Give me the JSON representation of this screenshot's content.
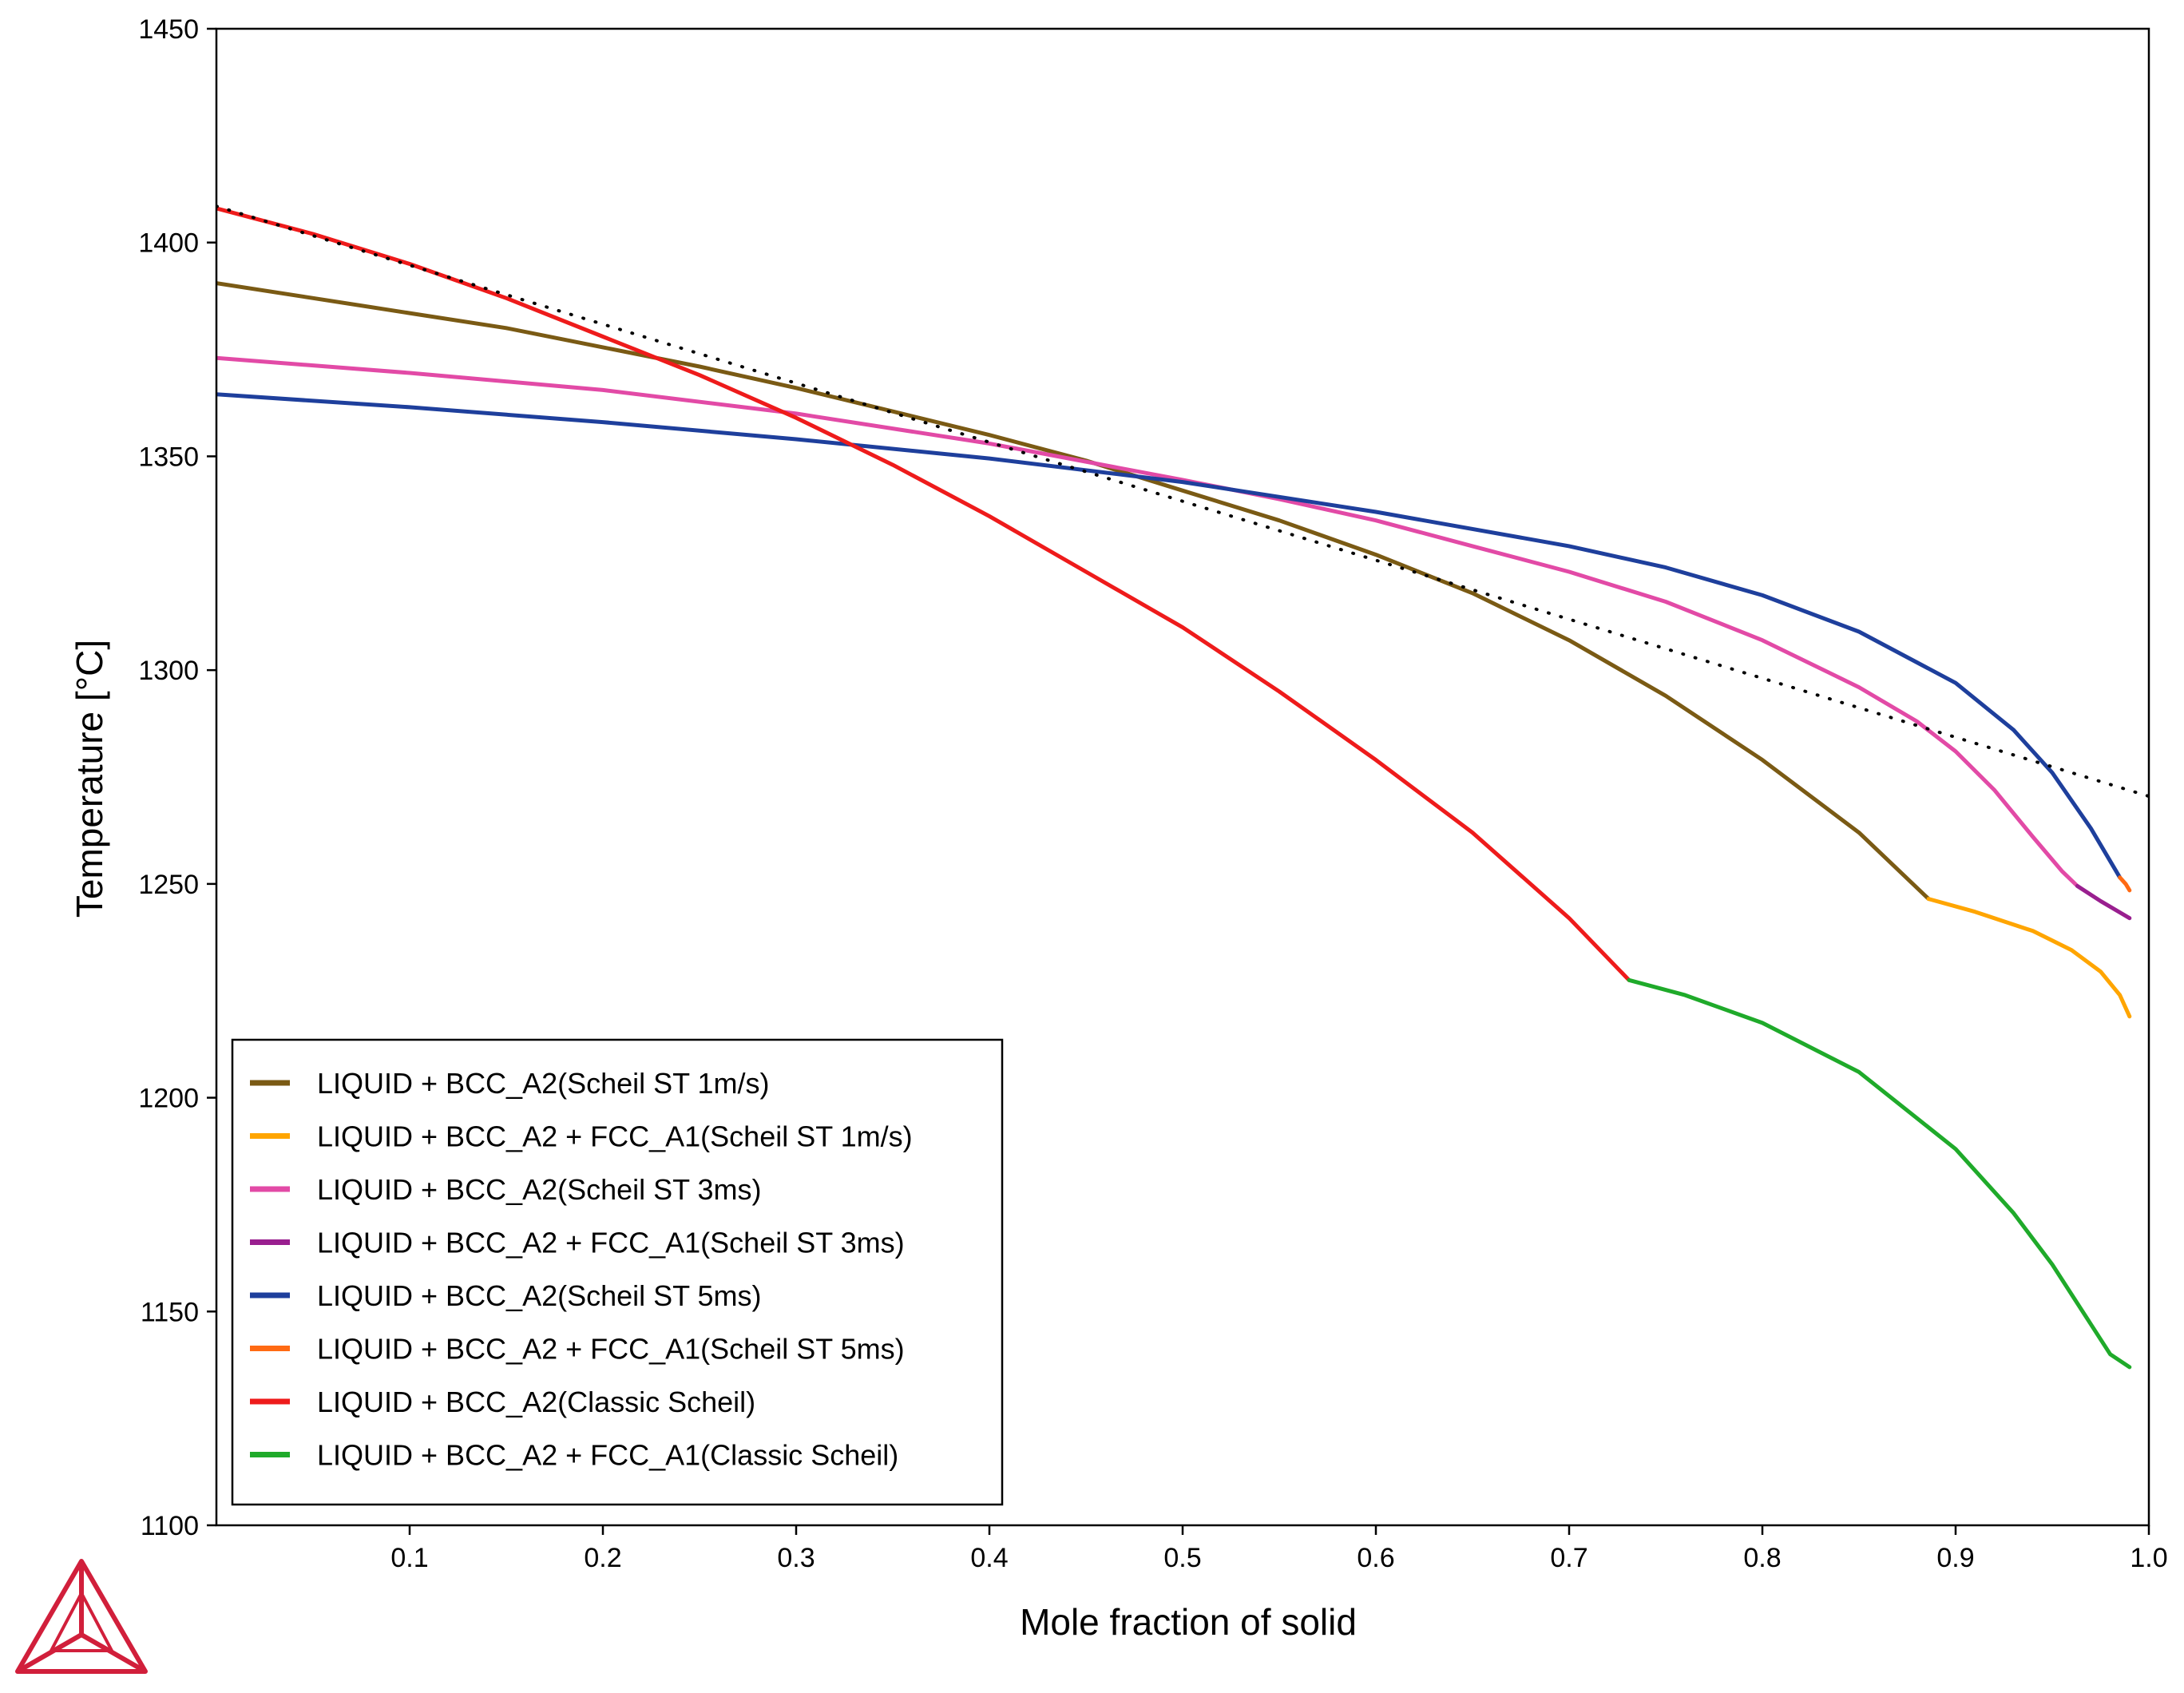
{
  "colors": {
    "scheil_1ms": "#7a5a14",
    "scheil_1ms_fcc": "#ffa500",
    "scheil_3ms": "#e24aa6",
    "scheil_3ms_fcc": "#991f8f",
    "scheil_5ms": "#1e3f9c",
    "scheil_5ms_fcc": "#ff6a13",
    "classic": "#ee1b1b",
    "classic_fcc": "#1faa2a",
    "reference_dotted": "#000000",
    "logo": "#d11f3b"
  },
  "chart_data": {
    "type": "line",
    "title": "",
    "xlabel": "Mole fraction of solid",
    "ylabel": "Temperature [°C]",
    "xlim": [
      0,
      1.0
    ],
    "ylim": [
      1100,
      1450
    ],
    "x_ticks": [
      0.1,
      0.2,
      0.3,
      0.4,
      0.5,
      0.6,
      0.7,
      0.8,
      0.9,
      1.0
    ],
    "x_tick_labels": [
      "0.1",
      "0.2",
      "0.3",
      "0.4",
      "0.5",
      "0.6",
      "0.7",
      "0.8",
      "0.9",
      "1.0"
    ],
    "y_ticks": [
      1100,
      1150,
      1200,
      1250,
      1300,
      1350,
      1400,
      1450
    ],
    "y_tick_labels": [
      "1100",
      "1150",
      "1200",
      "1250",
      "1300",
      "1350",
      "1400",
      "1450"
    ],
    "grid": false,
    "legend_position": "bottom-left",
    "series": [
      {
        "name": "LIQUID + BCC_A2(Scheil ST 1m/s)",
        "color_key": "scheil_1ms",
        "style": "solid",
        "points": [
          [
            0,
            1390.5
          ],
          [
            0.05,
            1387
          ],
          [
            0.1,
            1383.5
          ],
          [
            0.15,
            1380
          ],
          [
            0.2,
            1375.5
          ],
          [
            0.25,
            1371
          ],
          [
            0.3,
            1366
          ],
          [
            0.35,
            1360.5
          ],
          [
            0.4,
            1355
          ],
          [
            0.45,
            1349
          ],
          [
            0.5,
            1342
          ],
          [
            0.55,
            1335
          ],
          [
            0.6,
            1327
          ],
          [
            0.65,
            1318
          ],
          [
            0.7,
            1307
          ],
          [
            0.75,
            1294
          ],
          [
            0.8,
            1279
          ],
          [
            0.85,
            1262
          ],
          [
            0.886,
            1246.5
          ]
        ]
      },
      {
        "name": "LIQUID + BCC_A2 + FCC_A1(Scheil ST 1m/s)",
        "color_key": "scheil_1ms_fcc",
        "style": "solid",
        "points": [
          [
            0.886,
            1246.5
          ],
          [
            0.91,
            1243.5
          ],
          [
            0.94,
            1239
          ],
          [
            0.96,
            1234.5
          ],
          [
            0.975,
            1229.5
          ],
          [
            0.985,
            1224
          ],
          [
            0.99,
            1219
          ]
        ]
      },
      {
        "name": "LIQUID + BCC_A2(Scheil ST 3ms)",
        "color_key": "scheil_3ms",
        "style": "solid",
        "points": [
          [
            0,
            1373
          ],
          [
            0.1,
            1369.5
          ],
          [
            0.2,
            1365.5
          ],
          [
            0.3,
            1360
          ],
          [
            0.4,
            1353
          ],
          [
            0.5,
            1344.5
          ],
          [
            0.55,
            1340
          ],
          [
            0.6,
            1335
          ],
          [
            0.65,
            1329
          ],
          [
            0.7,
            1323
          ],
          [
            0.75,
            1316
          ],
          [
            0.8,
            1307
          ],
          [
            0.85,
            1296
          ],
          [
            0.88,
            1288
          ],
          [
            0.9,
            1281
          ],
          [
            0.92,
            1272
          ],
          [
            0.94,
            1261
          ],
          [
            0.955,
            1253
          ],
          [
            0.963,
            1249.5
          ]
        ]
      },
      {
        "name": "LIQUID + BCC_A2 + FCC_A1(Scheil ST 3ms)",
        "color_key": "scheil_3ms_fcc",
        "style": "solid",
        "points": [
          [
            0.963,
            1249.5
          ],
          [
            0.975,
            1246
          ],
          [
            0.99,
            1242
          ]
        ]
      },
      {
        "name": "LIQUID + BCC_A2(Scheil ST 5ms)",
        "color_key": "scheil_5ms",
        "style": "solid",
        "points": [
          [
            0,
            1364.5
          ],
          [
            0.1,
            1361.5
          ],
          [
            0.2,
            1358
          ],
          [
            0.3,
            1354
          ],
          [
            0.4,
            1349.5
          ],
          [
            0.5,
            1344
          ],
          [
            0.6,
            1337
          ],
          [
            0.7,
            1329
          ],
          [
            0.75,
            1324
          ],
          [
            0.8,
            1317.5
          ],
          [
            0.85,
            1309
          ],
          [
            0.9,
            1297
          ],
          [
            0.93,
            1286
          ],
          [
            0.95,
            1276
          ],
          [
            0.97,
            1263
          ],
          [
            0.985,
            1251.5
          ]
        ]
      },
      {
        "name": "LIQUID + BCC_A2 + FCC_A1(Scheil ST 5ms)",
        "color_key": "scheil_5ms_fcc",
        "style": "solid",
        "points": [
          [
            0.985,
            1251.5
          ],
          [
            0.988,
            1250
          ],
          [
            0.99,
            1248.5
          ]
        ]
      },
      {
        "name": "LIQUID + BCC_A2(Classic Scheil)",
        "color_key": "classic",
        "style": "solid",
        "points": [
          [
            0,
            1408
          ],
          [
            0.05,
            1402
          ],
          [
            0.1,
            1395
          ],
          [
            0.15,
            1387
          ],
          [
            0.2,
            1378
          ],
          [
            0.25,
            1369
          ],
          [
            0.3,
            1359
          ],
          [
            0.35,
            1348
          ],
          [
            0.4,
            1336
          ],
          [
            0.45,
            1323
          ],
          [
            0.5,
            1310
          ],
          [
            0.55,
            1295
          ],
          [
            0.6,
            1279
          ],
          [
            0.65,
            1262
          ],
          [
            0.7,
            1242
          ],
          [
            0.731,
            1227.5
          ]
        ]
      },
      {
        "name": "LIQUID + BCC_A2 + FCC_A1(Classic Scheil)",
        "color_key": "classic_fcc",
        "style": "solid",
        "points": [
          [
            0.731,
            1227.5
          ],
          [
            0.76,
            1224
          ],
          [
            0.8,
            1217.5
          ],
          [
            0.85,
            1206
          ],
          [
            0.9,
            1188
          ],
          [
            0.93,
            1173
          ],
          [
            0.95,
            1161
          ],
          [
            0.97,
            1147
          ],
          [
            0.98,
            1140
          ],
          [
            0.99,
            1137
          ]
        ]
      },
      {
        "name": "",
        "color_key": "reference_dotted",
        "style": "dotted",
        "legend": false,
        "points": [
          [
            0,
            1408.5
          ],
          [
            1.0,
            1270.5
          ]
        ]
      }
    ]
  }
}
